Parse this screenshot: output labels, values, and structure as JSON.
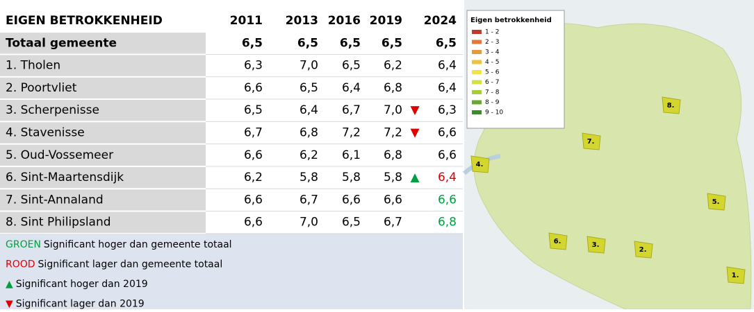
{
  "table": {
    "title": "EIGEN BETROKKENHEID",
    "years": [
      "2011",
      "2013",
      "2016",
      "2019",
      "2024"
    ],
    "rows": [
      {
        "label": "Totaal gemeente",
        "values": [
          "6,5",
          "6,5",
          "6,5",
          "6,5",
          "6,5"
        ],
        "bold": true
      },
      {
        "label": "1. Tholen",
        "values": [
          "6,3",
          "7,0",
          "6,5",
          "6,2",
          "6,4"
        ]
      },
      {
        "label": "2. Poortvliet",
        "values": [
          "6,6",
          "6,5",
          "6,4",
          "6,8",
          "6,4"
        ]
      },
      {
        "label": "3. Scherpenisse",
        "values": [
          "6,5",
          "6,4",
          "6,7",
          "7,0",
          "6,3"
        ],
        "arrow": "▼",
        "arrow_color": "#e00000"
      },
      {
        "label": "4. Stavenisse",
        "values": [
          "6,7",
          "6,8",
          "7,2",
          "7,2",
          "6,6"
        ],
        "arrow": "▼",
        "arrow_color": "#e00000"
      },
      {
        "label": "5. Oud-Vossemeer",
        "values": [
          "6,6",
          "6,2",
          "6,1",
          "6,8",
          "6,6"
        ]
      },
      {
        "label": "6. Sint-Maartensdijk",
        "values": [
          "6,2",
          "5,8",
          "5,8",
          "5,8",
          "6,4"
        ],
        "arrow": "▲",
        "arrow_color": "#00a040",
        "color": "#e00000"
      },
      {
        "label": "7. Sint-Annaland",
        "values": [
          "6,6",
          "6,7",
          "6,6",
          "6,6",
          "6,6"
        ],
        "color": "#00a040"
      },
      {
        "label": "8. Sint Philipsland",
        "values": [
          "6,6",
          "7,0",
          "6,5",
          "6,7",
          "6,8"
        ],
        "color": "#00a040"
      }
    ]
  },
  "notes": [
    {
      "key": "GROEN",
      "key_color": "#00a040",
      "text": "Significant hoger dan gemeente totaal"
    },
    {
      "key": "ROOD",
      "key_color": "#e00000",
      "text": "Significant lager dan gemeente totaal"
    },
    {
      "key": "▲",
      "key_color": "#00a040",
      "text": "Significant hoger dan 2019"
    },
    {
      "key": "▼",
      "key_color": "#e00000",
      "text": "Significant lager dan 2019"
    }
  ],
  "map": {
    "legend_title": "Eigen betrokkenheid",
    "legend": [
      {
        "label": "1 - 2",
        "color": "#c0392b"
      },
      {
        "label": "2 - 3",
        "color": "#e07b39"
      },
      {
        "label": "3 - 4",
        "color": "#e69a3c"
      },
      {
        "label": "4 - 5",
        "color": "#f0c040"
      },
      {
        "label": "5 - 6",
        "color": "#f2e34a"
      },
      {
        "label": "6 - 7",
        "color": "#d4e04a"
      },
      {
        "label": "7 - 8",
        "color": "#a8cc3c"
      },
      {
        "label": "8 - 9",
        "color": "#6aa832"
      },
      {
        "label": "9 - 10",
        "color": "#3f8a2c"
      }
    ],
    "areas": [
      "8.",
      "7.",
      "4.",
      "5.",
      "6.",
      "3.",
      "2.",
      "1."
    ]
  }
}
